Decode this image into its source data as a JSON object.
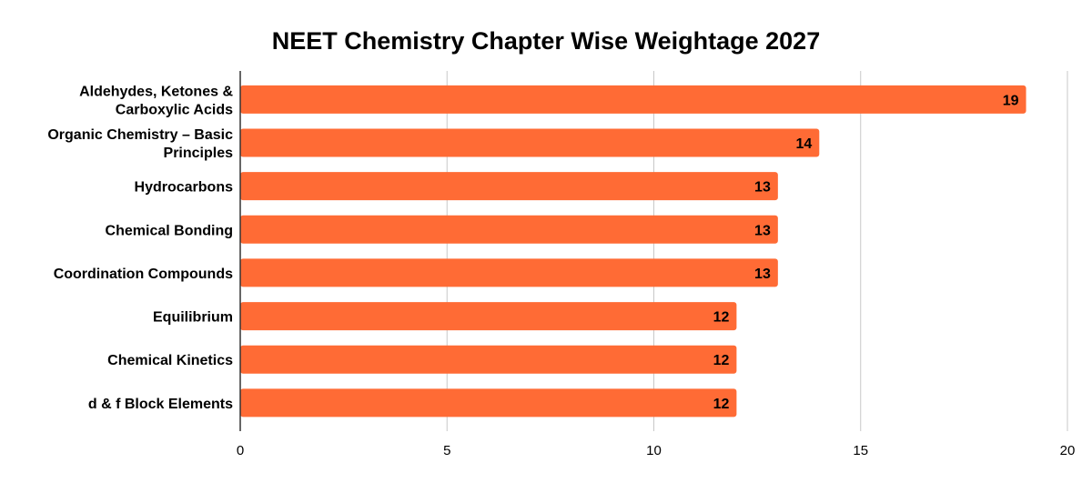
{
  "chart_data": {
    "type": "bar",
    "orientation": "horizontal",
    "title": "NEET Chemistry Chapter Wise Weightage 2027",
    "xlabel": "",
    "ylabel": "",
    "categories": [
      [
        "Aldehydes, Ketones &",
        "Carboxylic Acids"
      ],
      [
        "Organic Chemistry – Basic",
        "Principles"
      ],
      [
        "Hydrocarbons"
      ],
      [
        "Chemical Bonding"
      ],
      [
        "Coordination Compounds"
      ],
      [
        "Equilibrium"
      ],
      [
        "Chemical Kinetics"
      ],
      [
        "d & f Block Elements"
      ]
    ],
    "values": [
      19,
      14,
      13,
      13,
      13,
      12,
      12,
      12
    ],
    "xlim": [
      0,
      20
    ],
    "xticks": [
      0,
      5,
      10,
      15,
      20
    ],
    "grid": true,
    "legend": "none",
    "bar_color": "#ff6b35"
  }
}
